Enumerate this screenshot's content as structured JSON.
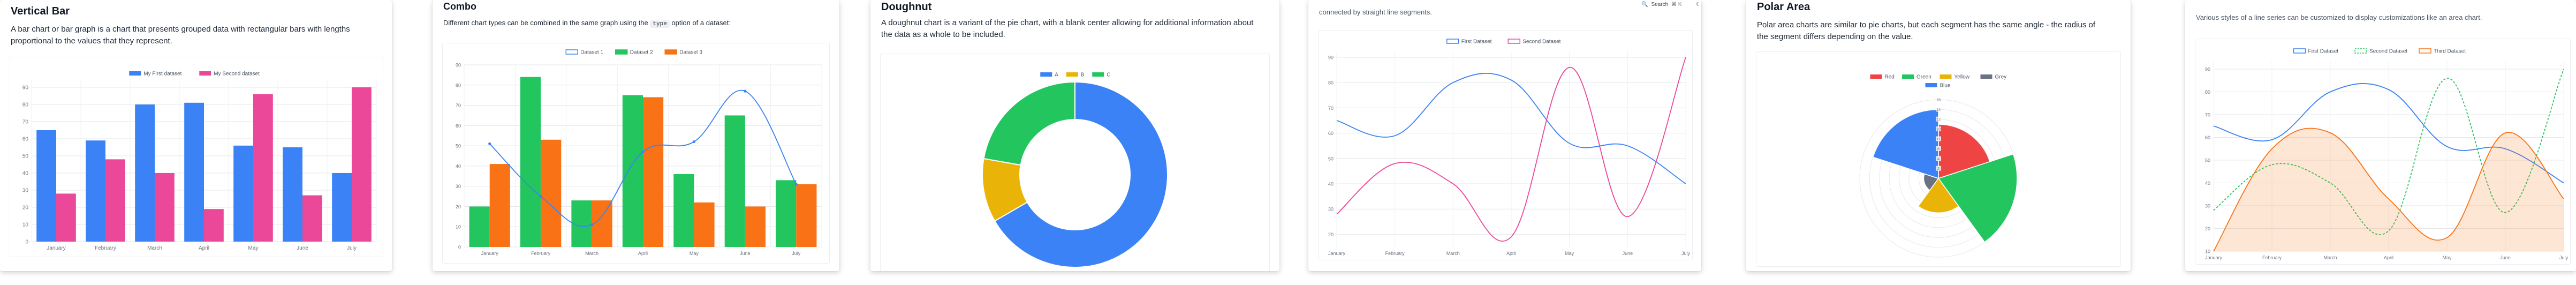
{
  "cards": {
    "vertical_bar": {
      "title": "Vertical Bar",
      "description": "A bar chart or bar graph is a chart that presents grouped data with rectangular bars with lengths proportional to the values that they represent."
    },
    "combo": {
      "title": "Combo",
      "description_pre": "Different chart types can be combined in the same graph using the",
      "description_code": "type",
      "description_post": "option of a dataset:"
    },
    "doughnut": {
      "title": "Doughnut",
      "description": "A doughnut chart is a variant of the pie chart, with a blank center allowing for additional information about the data as a whole to be included."
    },
    "line": {
      "description": "connected by straight line segments.",
      "toolbar": {
        "search_label": "Search",
        "shortcut": "⌘ K"
      }
    },
    "polar": {
      "title": "Polar Area",
      "description": "Polar area charts are similar to pie charts, but each segment has the same angle - the radius of the segment differs depending on the value."
    },
    "line_styles": {
      "description": "Various styles of a line series can be customized to display customizations like an area chart."
    }
  },
  "chart_data": [
    {
      "id": "vertical-bar",
      "type": "bar",
      "categories": [
        "January",
        "February",
        "March",
        "April",
        "May",
        "June",
        "July"
      ],
      "series": [
        {
          "name": "My First dataset",
          "color": "#3b82f6",
          "values": [
            65,
            59,
            80,
            81,
            56,
            55,
            40
          ]
        },
        {
          "name": "My Second dataset",
          "color": "#ec4899",
          "values": [
            28,
            48,
            40,
            19,
            86,
            27,
            90
          ]
        }
      ],
      "ylim": [
        0,
        90
      ],
      "yticks": [
        0,
        10,
        20,
        30,
        40,
        50,
        60,
        70,
        80,
        90
      ],
      "legend": "top-center",
      "grid": true
    },
    {
      "id": "combo",
      "type": "bar",
      "categories": [
        "January",
        "February",
        "March",
        "April",
        "May",
        "June",
        "July"
      ],
      "series": [
        {
          "name": "Dataset 1",
          "kind": "line",
          "color": "#3b82f6",
          "values": [
            51,
            25,
            11,
            47,
            52,
            77,
            31
          ]
        },
        {
          "name": "Dataset 2",
          "kind": "bar",
          "color": "#22c55e",
          "values": [
            20,
            84,
            23,
            75,
            36,
            65,
            33
          ]
        },
        {
          "name": "Dataset 3",
          "kind": "bar",
          "color": "#f97316",
          "values": [
            41,
            53,
            23,
            74,
            22,
            20,
            31
          ]
        }
      ],
      "ylim": [
        0,
        90
      ],
      "yticks": [
        0,
        10,
        20,
        30,
        40,
        50,
        60,
        70,
        80,
        90
      ],
      "legend": "top-center",
      "grid": true
    },
    {
      "id": "doughnut",
      "type": "pie",
      "labels": [
        "A",
        "B",
        "C"
      ],
      "values": [
        300,
        50,
        100
      ],
      "colors": [
        "#3b82f6",
        "#eab308",
        "#22c55e"
      ],
      "legend": "top-center"
    },
    {
      "id": "line",
      "type": "line",
      "categories": [
        "January",
        "February",
        "March",
        "April",
        "May",
        "June",
        "July"
      ],
      "series": [
        {
          "name": "First Dataset",
          "color": "#3b82f6",
          "values": [
            65,
            59,
            80,
            81,
            56,
            55,
            40
          ]
        },
        {
          "name": "Second Dataset",
          "color": "#ec4899",
          "values": [
            28,
            48,
            40,
            19,
            86,
            27,
            90
          ]
        }
      ],
      "ylim": [
        15,
        90
      ],
      "yticks": [
        20,
        30,
        40,
        50,
        60,
        70,
        80,
        90
      ],
      "legend": "top-center",
      "grid": true
    },
    {
      "id": "polar",
      "type": "pie",
      "labels": [
        "Red",
        "Green",
        "Yellow",
        "Grey",
        "Blue"
      ],
      "values": [
        11,
        16,
        7,
        3,
        14
      ],
      "colors": [
        "#ef4444",
        "#22c55e",
        "#eab308",
        "#6b7280",
        "#3b82f6"
      ],
      "rmax": 16,
      "rticks": [
        0,
        2,
        4,
        6,
        8,
        10,
        12,
        14,
        16
      ],
      "legend": "top-center"
    },
    {
      "id": "line-styles",
      "type": "line",
      "categories": [
        "January",
        "February",
        "March",
        "April",
        "May",
        "June",
        "July"
      ],
      "series": [
        {
          "name": "First Dataset",
          "style": "line",
          "color": "#3b82f6",
          "values": [
            65,
            59,
            80,
            81,
            56,
            55,
            40
          ]
        },
        {
          "name": "Second Dataset",
          "style": "dashed",
          "color": "#22c55e",
          "values": [
            28,
            48,
            40,
            19,
            86,
            27,
            90
          ]
        },
        {
          "name": "Third Dataset",
          "style": "area",
          "color": "#f97316",
          "values": [
            10,
            55,
            62,
            33,
            16,
            62,
            33
          ]
        }
      ],
      "ylim": [
        10,
        90
      ],
      "yticks": [
        10,
        20,
        30,
        40,
        50,
        60,
        70,
        80,
        90
      ],
      "legend": "top-center",
      "grid": true
    }
  ]
}
